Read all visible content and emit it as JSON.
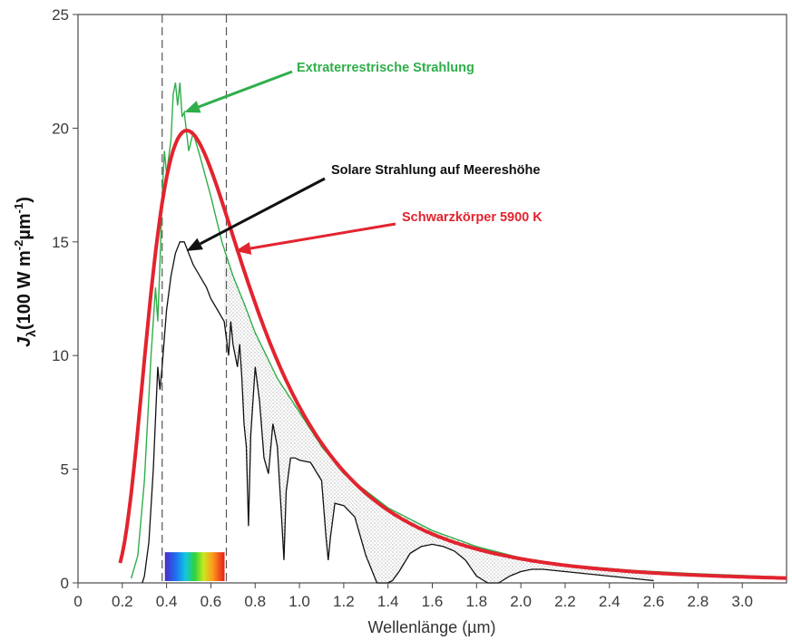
{
  "chart_data": {
    "type": "line",
    "xlabel": "Wellenlänge (µm)",
    "ylabel_main": "J",
    "ylabel_sub": "λ",
    "ylabel_rest": "(100 W m",
    "ylabel_exp1": "-2",
    "ylabel_mid": "µm",
    "ylabel_exp2": "-1",
    "ylabel_close": ")",
    "xlim": [
      0,
      3.2
    ],
    "ylim": [
      0,
      25
    ],
    "x_ticks": [
      "0",
      "0.2",
      "0.4",
      "0.6",
      "0.8",
      "1.0",
      "1.2",
      "1.4",
      "1.6",
      "1.8",
      "2.0",
      "2.2",
      "2.4",
      "2.6",
      "2.8",
      "3.0"
    ],
    "x_tick_values": [
      0,
      0.2,
      0.4,
      0.6,
      0.8,
      1.0,
      1.2,
      1.4,
      1.6,
      1.8,
      2.0,
      2.2,
      2.4,
      2.6,
      2.8,
      3.0
    ],
    "y_ticks": [
      "0",
      "5",
      "10",
      "15",
      "20",
      "25"
    ],
    "y_tick_values": [
      0,
      5,
      10,
      15,
      20,
      25
    ],
    "visible_band": [
      0.38,
      0.67
    ],
    "series": [
      {
        "name": "Extraterrestrische Strahlung",
        "color": "#2fae4a",
        "x": [
          0.24,
          0.27,
          0.3,
          0.33,
          0.35,
          0.36,
          0.37,
          0.38,
          0.39,
          0.4,
          0.42,
          0.43,
          0.44,
          0.45,
          0.46,
          0.47,
          0.48,
          0.5,
          0.52,
          0.55,
          0.6,
          0.65,
          0.7,
          0.75,
          0.8,
          0.9,
          1.0,
          1.1,
          1.2,
          1.4,
          1.6,
          1.8,
          2.0,
          2.2,
          2.5,
          2.8,
          3.2
        ],
        "y": [
          0.2,
          1.2,
          4.5,
          10.0,
          13.0,
          11.5,
          14.0,
          17.0,
          19.0,
          18.0,
          19.5,
          21.5,
          22.0,
          21.0,
          22.0,
          20.5,
          20.7,
          19.0,
          19.8,
          18.8,
          17.0,
          15.0,
          13.5,
          12.3,
          11.0,
          9.0,
          7.5,
          6.0,
          4.8,
          3.3,
          2.3,
          1.6,
          1.1,
          0.8,
          0.55,
          0.4,
          0.25
        ]
      },
      {
        "name": "Solare Strahlung auf Meereshöhe",
        "color": "#111111",
        "x": [
          0.29,
          0.3,
          0.32,
          0.34,
          0.36,
          0.37,
          0.38,
          0.4,
          0.42,
          0.44,
          0.46,
          0.48,
          0.5,
          0.52,
          0.55,
          0.58,
          0.6,
          0.63,
          0.66,
          0.68,
          0.69,
          0.7,
          0.72,
          0.73,
          0.74,
          0.75,
          0.76,
          0.77,
          0.78,
          0.8,
          0.82,
          0.84,
          0.86,
          0.88,
          0.9,
          0.92,
          0.93,
          0.94,
          0.96,
          0.98,
          1.0,
          1.05,
          1.1,
          1.12,
          1.13,
          1.14,
          1.16,
          1.2,
          1.25,
          1.3,
          1.35,
          1.4,
          1.42,
          1.45,
          1.5,
          1.55,
          1.6,
          1.65,
          1.7,
          1.75,
          1.8,
          1.85,
          1.9,
          1.95,
          2.0,
          2.05,
          2.1,
          2.2,
          2.3,
          2.4,
          2.5,
          2.6
        ],
        "y": [
          0.0,
          0.3,
          1.8,
          5.0,
          9.5,
          8.5,
          9.5,
          12.0,
          13.5,
          14.5,
          15.0,
          15.0,
          14.5,
          14.0,
          13.5,
          13.0,
          12.5,
          12.0,
          11.5,
          10.0,
          11.5,
          10.5,
          9.5,
          10.5,
          9.0,
          7.0,
          6.0,
          2.5,
          6.5,
          9.5,
          8.0,
          5.5,
          4.8,
          7.0,
          6.0,
          2.8,
          1.0,
          4.0,
          5.5,
          5.5,
          5.4,
          5.3,
          4.5,
          2.0,
          1.0,
          2.0,
          3.5,
          3.4,
          2.9,
          1.2,
          0.0,
          0.0,
          0.1,
          0.5,
          1.3,
          1.6,
          1.7,
          1.6,
          1.4,
          1.0,
          0.3,
          0.0,
          0.0,
          0.3,
          0.5,
          0.6,
          0.6,
          0.5,
          0.4,
          0.3,
          0.2,
          0.1
        ]
      },
      {
        "name": "Schwarzkörper 5900 K",
        "color": "#e2242f",
        "temperature_K": 5900,
        "y_peak": 19.9,
        "x_range": [
          0.19,
          3.2
        ]
      }
    ],
    "annotations": [
      {
        "text": "Extraterrestrische Strahlung",
        "color": "#2fae4a",
        "target_x": 0.48,
        "target_y": 20.7
      },
      {
        "text": "Solare Strahlung auf Meereshöhe",
        "color": "#111111",
        "target_x": 0.49,
        "target_y": 14.6
      },
      {
        "text": "Schwarzkörper 5900 K",
        "color": "#e2242f",
        "target_x": 0.71,
        "target_y": 14.6
      }
    ]
  }
}
